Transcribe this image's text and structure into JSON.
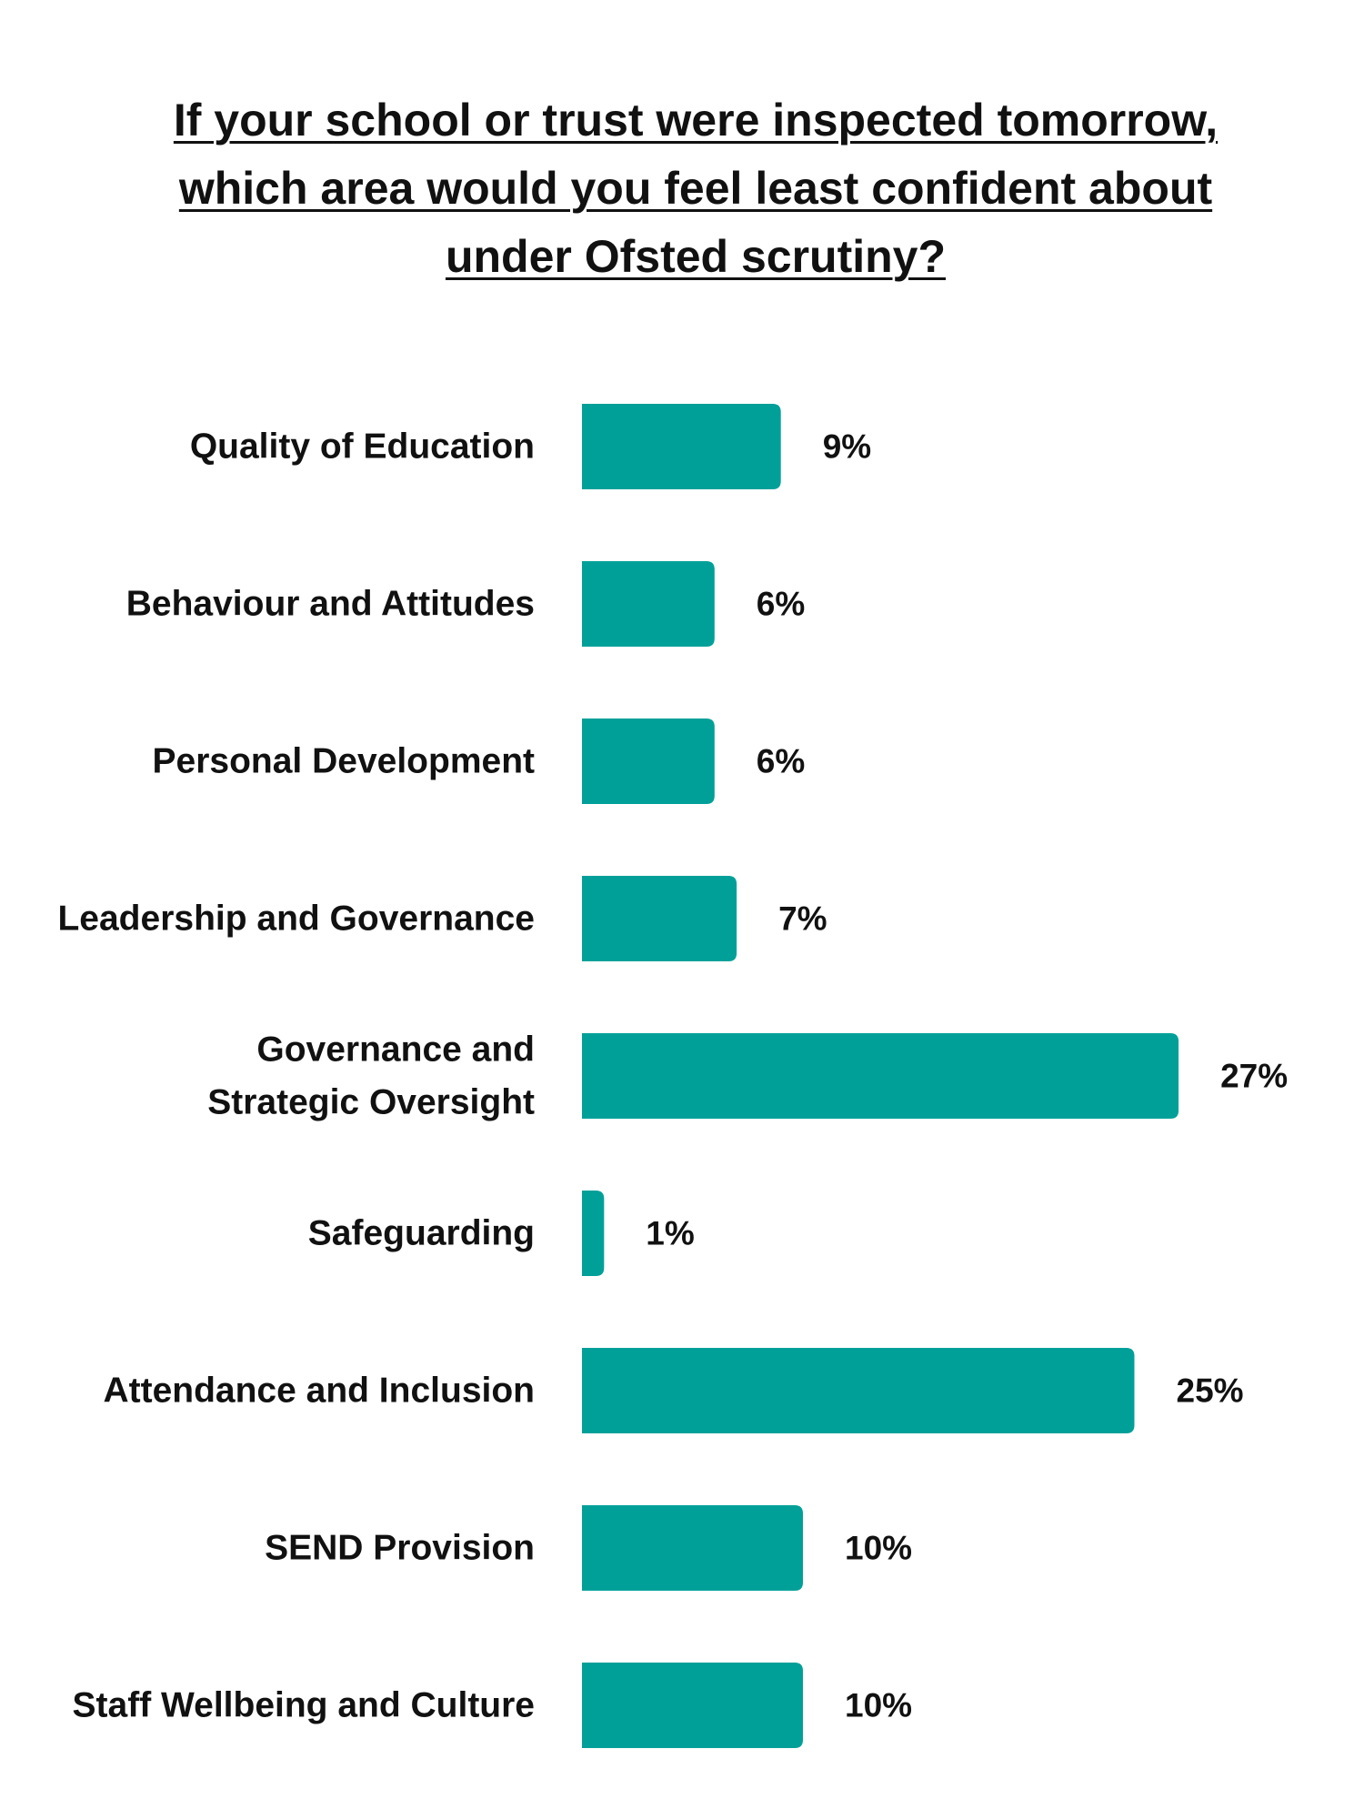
{
  "chart_data": {
    "type": "bar",
    "orientation": "horizontal",
    "title_lines": [
      "If your school or trust were inspected tomorrow,",
      "which area would you feel least confident about",
      "under Ofsted scrutiny?"
    ],
    "categories": [
      [
        "Quality of Education"
      ],
      [
        "Behaviour and Attitudes"
      ],
      [
        "Personal Development"
      ],
      [
        "Leadership and Governance"
      ],
      [
        "Governance and",
        "Strategic Oversight"
      ],
      [
        "Safeguarding"
      ],
      [
        "Attendance and Inclusion"
      ],
      [
        "SEND Provision"
      ],
      [
        "Staff Wellbeing and Culture"
      ]
    ],
    "values": [
      9,
      6,
      6,
      7,
      27,
      1,
      25,
      10,
      10
    ],
    "value_labels": [
      "9%",
      "6%",
      "6%",
      "7%",
      "27%",
      "1%",
      "25%",
      "10%",
      "10%"
    ],
    "unit": "%",
    "grid": false,
    "legend": "none",
    "bar_color": "#00A099"
  }
}
